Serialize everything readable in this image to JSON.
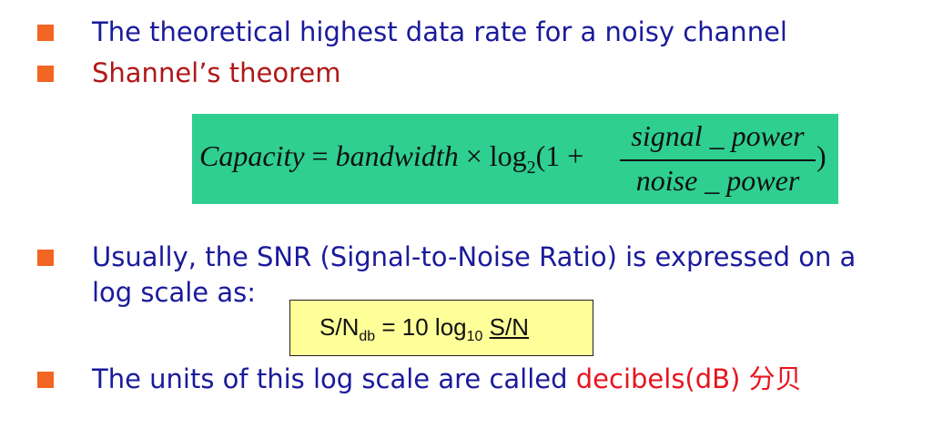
{
  "colors": {
    "bullet": "#f26522",
    "text_blue": "#1a1a9c",
    "text_dark_red": "#b01818",
    "text_red": "#e8141e",
    "formula_bg": "#2ecf8f",
    "snr_bg": "#ffff99"
  },
  "bullets": [
    {
      "text": "The theoretical highest data rate for a noisy channel"
    },
    {
      "text": "Shannel’s theorem"
    },
    {
      "line1": "Usually, the SNR (Signal-to-Noise Ratio) is expressed on a",
      "line2": "log scale as:"
    },
    {
      "prefix": "The units of this log scale are called ",
      "highlight": "decibels(dB) 分贝"
    }
  ],
  "formula": {
    "lhs": "Capacity",
    "eq": " = ",
    "bandwidth": "bandwidth",
    "times": " × ",
    "log": "log",
    "log_base": "2",
    "open": "(1 + ",
    "numerator": "signal _ power",
    "denominator": "noise _ power",
    "close": ")"
  },
  "snr": {
    "lhs_main": "S/N",
    "lhs_sub": "db",
    "eq_text": " = 10 log",
    "log_sub": "10",
    "rhs": "S/N"
  }
}
